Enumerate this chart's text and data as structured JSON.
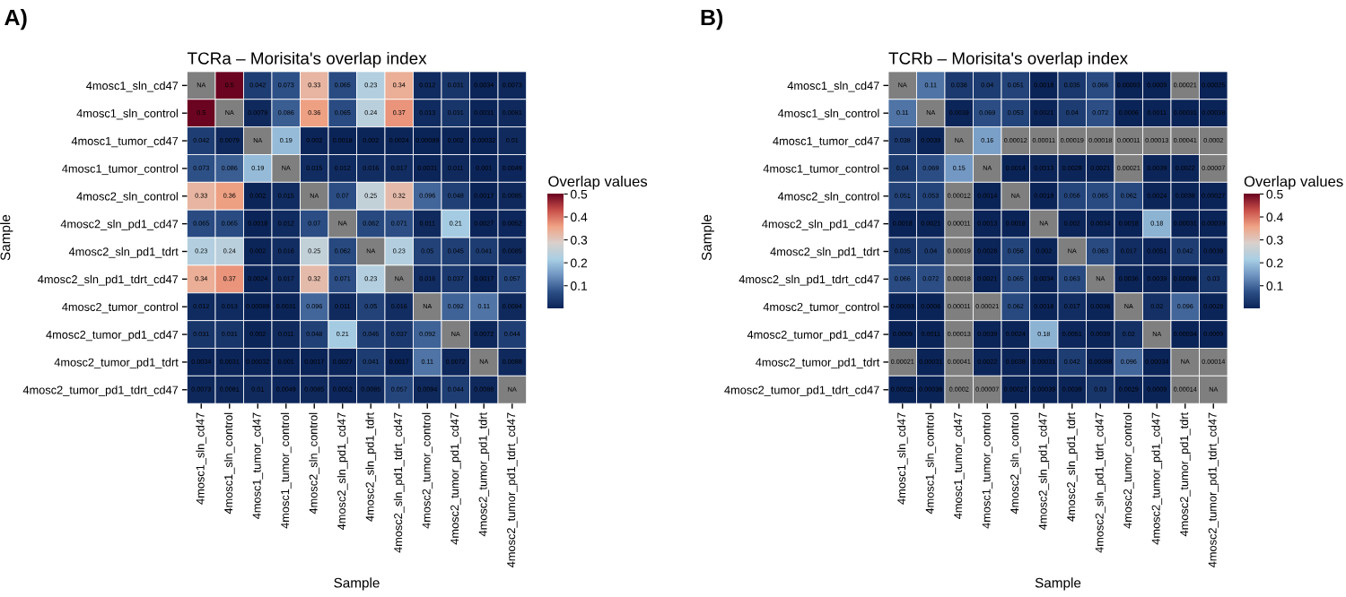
{
  "chart_data": [
    {
      "type": "heatmap",
      "title": "TCRa – Morisita's overlap index",
      "xlabel": "Sample",
      "ylabel": "Sample",
      "clabel": "Overlap values",
      "annotations": [
        "A)"
      ],
      "categories": [
        "4mosc1_sln_cd47",
        "4mosc1_sln_control",
        "4mosc1_tumor_cd47",
        "4mosc1_tumor_control",
        "4mosc2_sln_control",
        "4mosc2_sln_pd1_cd47",
        "4mosc2_sln_pd1_tdrt",
        "4mosc2_sln_pd1_tdrt_cd47",
        "4mosc2_tumor_control",
        "4mosc2_tumor_pd1_cd47",
        "4mosc2_tumor_pd1_tdrt",
        "4mosc2_tumor_pd1_tdrt_cd47"
      ],
      "y_categories": [
        "4mosc1_sln_cd47",
        "4mosc1_sln_control",
        "4mosc1_tumor_cd47",
        "4mosc1_tumor_control",
        "4mosc2_sln_control",
        "4mosc2_sln_pd1_cd47",
        "4mosc2_sln_pd1_tdrt",
        "4mosc2_sln_pd1_tdrt_cd47",
        "4mosc2_tumor_control",
        "4mosc2_tumor_pd1_cd47",
        "4mosc2_tumor_pd1_tdrt",
        "4mosc2_tumor_pd1_tdrt_cd47"
      ],
      "cells": [
        [
          null,
          0.5,
          0.042,
          0.073,
          0.33,
          0.065,
          0.23,
          0.34,
          0.012,
          0.031,
          0.0034,
          0.0073
        ],
        [
          0.5,
          null,
          0.0079,
          0.086,
          0.36,
          0.065,
          0.24,
          0.37,
          0.013,
          0.031,
          0.0031,
          0.0081
        ],
        [
          0.042,
          0.0079,
          null,
          0.19,
          0.002,
          0.0018,
          0.002,
          0.0024,
          0.00089,
          0.002,
          0.00032,
          0.01
        ],
        [
          0.073,
          0.086,
          0.19,
          null,
          0.015,
          0.012,
          0.016,
          0.017,
          0.0031,
          0.011,
          0.001,
          0.0049
        ],
        [
          0.33,
          0.36,
          0.002,
          0.015,
          null,
          0.07,
          0.25,
          0.32,
          0.096,
          0.048,
          0.0017,
          0.0085
        ],
        [
          0.065,
          0.065,
          0.0018,
          0.012,
          0.07,
          null,
          0.062,
          0.071,
          0.011,
          0.21,
          0.0027,
          0.0052
        ],
        [
          0.23,
          0.24,
          0.002,
          0.016,
          0.25,
          0.062,
          null,
          0.23,
          0.05,
          0.045,
          0.041,
          0.0085
        ],
        [
          0.34,
          0.37,
          0.0024,
          0.017,
          0.32,
          0.071,
          0.23,
          null,
          0.016,
          0.037,
          0.0017,
          0.057
        ],
        [
          0.012,
          0.013,
          0.00089,
          0.0031,
          0.096,
          0.011,
          0.05,
          0.016,
          null,
          0.092,
          0.11,
          0.0094
        ],
        [
          0.031,
          0.031,
          0.002,
          0.011,
          0.048,
          0.21,
          0.045,
          0.037,
          0.092,
          null,
          0.0072,
          0.044
        ],
        [
          0.0034,
          0.0031,
          0.00032,
          0.001,
          0.0017,
          0.0027,
          0.041,
          0.0017,
          0.11,
          0.0072,
          null,
          0.0088
        ],
        [
          0.0073,
          0.0081,
          0.01,
          0.0049,
          0.0085,
          0.0052,
          0.0085,
          0.057,
          0.0094,
          0.044,
          0.0088,
          null
        ]
      ],
      "cell_labels": [
        [
          "NA",
          "0.5",
          "0.042",
          "0.073",
          "0.33",
          "0.065",
          "0.23",
          "0.34",
          "0.012",
          "0.031",
          "0.0034",
          "0.0073"
        ],
        [
          "0.5",
          "NA",
          "0.0079",
          "0.086",
          "0.36",
          "0.065",
          "0.24",
          "0.37",
          "0.013",
          "0.031",
          "0.0031",
          "0.0081"
        ],
        [
          "0.042",
          "0.0079",
          "NA",
          "0.19",
          "0.002",
          "0.0018",
          "0.002",
          "0.0024",
          "0.00089",
          "0.002",
          "0.00032",
          "0.01"
        ],
        [
          "0.073",
          "0.086",
          "0.19",
          "NA",
          "0.015",
          "0.012",
          "0.016",
          "0.017",
          "0.0031",
          "0.011",
          "0.001",
          "0.0049"
        ],
        [
          "0.33",
          "0.36",
          "0.002",
          "0.015",
          "NA",
          "0.07",
          "0.25",
          "0.32",
          "0.096",
          "0.048",
          "0.0017",
          "0.0085"
        ],
        [
          "0.065",
          "0.065",
          "0.0018",
          "0.012",
          "0.07",
          "NA",
          "0.062",
          "0.071",
          "0.011",
          "0.21",
          "0.0027",
          "0.0052"
        ],
        [
          "0.23",
          "0.24",
          "0.002",
          "0.016",
          "0.25",
          "0.062",
          "NA",
          "0.23",
          "0.05",
          "0.045",
          "0.041",
          "0.0085"
        ],
        [
          "0.34",
          "0.37",
          "0.0024",
          "0.017",
          "0.32",
          "0.071",
          "0.23",
          "NA",
          "0.016",
          "0.037",
          "0.0017",
          "0.057"
        ],
        [
          "0.012",
          "0.013",
          "0.00089",
          "0.0031",
          "0.096",
          "0.011",
          "0.05",
          "0.016",
          "NA",
          "0.092",
          "0.11",
          "0.0094"
        ],
        [
          "0.031",
          "0.031",
          "0.002",
          "0.011",
          "0.048",
          "0.21",
          "0.045",
          "0.037",
          "0.092",
          "NA",
          "0.0072",
          "0.044"
        ],
        [
          "0.0034",
          "0.0031",
          "0.00032",
          "0.001",
          "0.0017",
          "0.0027",
          "0.041",
          "0.0017",
          "0.11",
          "0.0072",
          "NA",
          "0.0088"
        ],
        [
          "0.0073",
          "0.0081",
          "0.01",
          "0.0049",
          "0.0085",
          "0.0052",
          "0.0085",
          "0.057",
          "0.0094",
          "0.044",
          "0.0088",
          "NA"
        ]
      ],
      "clim": [
        0,
        0.5
      ],
      "cticks": [
        0.1,
        0.2,
        0.3,
        0.4,
        0.5
      ]
    },
    {
      "type": "heatmap",
      "title": "TCRb – Morisita's overlap index",
      "xlabel": "Sample",
      "ylabel": "Sample",
      "clabel": "Overlap values",
      "annotations": [
        "B)"
      ],
      "categories": [
        "4mosc1_sln_cd47",
        "4mosc1_sln_control",
        "4mosc1_tumor_cd47",
        "4mosc1_tumor_control",
        "4mosc2_sln_control",
        "4mosc2_sln_pd1_cd47",
        "4mosc2_sln_pd1_tdrt",
        "4mosc2_sln_pd1_tdrt_cd47",
        "4mosc2_tumor_control",
        "4mosc2_tumor_pd1_cd47",
        "4mosc2_tumor_pd1_tdrt",
        "4mosc2_tumor_pd1_tdrt_cd47"
      ],
      "y_categories": [
        "4mosc1_sln_cd47",
        "4mosc1_sln_control",
        "4mosc1_tumor_cd47",
        "4mosc1_tumor_control",
        "4mosc2_sln_control",
        "4mosc2_sln_pd1_cd47",
        "4mosc2_sln_pd1_tdrt",
        "4mosc2_sln_pd1_tdrt_cd47",
        "4mosc2_tumor_control",
        "4mosc2_tumor_pd1_cd47",
        "4mosc2_tumor_pd1_tdrt",
        "4mosc2_tumor_pd1_tdrt_cd47"
      ],
      "cells": [
        [
          null,
          0.11,
          0.038,
          0.04,
          0.051,
          0.0018,
          0.035,
          0.066,
          0.00093,
          0.0009,
          null,
          0.00025
        ],
        [
          0.11,
          null,
          0.0039,
          0.069,
          0.053,
          0.0021,
          0.04,
          0.072,
          0.0006,
          0.0011,
          0.00031,
          0.00038
        ],
        [
          0.038,
          0.0039,
          null,
          0.16,
          null,
          null,
          null,
          null,
          null,
          null,
          null,
          null
        ],
        [
          0.04,
          0.069,
          0.15,
          null,
          0.0014,
          0.0013,
          0.0028,
          0.0021,
          null,
          0.0039,
          0.0022,
          null
        ],
        [
          0.051,
          0.053,
          null,
          0.0014,
          null,
          0.0018,
          0.056,
          0.065,
          0.062,
          0.0024,
          0.0038,
          0.00027
        ],
        [
          0.0018,
          0.0021,
          null,
          0.0013,
          0.0018,
          null,
          0.002,
          0.0034,
          0.0018,
          0.18,
          0.00031,
          0.00039
        ],
        [
          0.035,
          0.04,
          null,
          0.0028,
          0.056,
          0.002,
          null,
          0.063,
          0.017,
          0.0051,
          0.042,
          0.0039
        ],
        [
          0.066,
          0.072,
          null,
          0.0021,
          0.065,
          0.0034,
          0.063,
          null,
          0.0036,
          0.0039,
          0.00088,
          0.03
        ],
        [
          0.00093,
          0.0006,
          null,
          null,
          0.062,
          0.0018,
          0.017,
          0.0036,
          null,
          0.02,
          0.096,
          0.0029
        ],
        [
          0.0009,
          0.0011,
          null,
          0.0039,
          0.0024,
          0.18,
          0.0051,
          0.0039,
          0.02,
          null,
          0.00034,
          0.0009
        ],
        [
          null,
          0.00031,
          null,
          0.0022,
          0.0038,
          0.00031,
          0.042,
          0.00088,
          0.096,
          0.00034,
          null,
          null
        ],
        [
          0.00025,
          0.00038,
          null,
          null,
          0.00027,
          0.00039,
          0.0039,
          0.03,
          0.0029,
          0.0009,
          null,
          null
        ]
      ],
      "cell_labels": [
        [
          "NA",
          "0.11",
          "0.038",
          "0.04",
          "0.051",
          "0.0018",
          "0.035",
          "0.066",
          "0.00093",
          "0.0009",
          "0.00021",
          "0.00025"
        ],
        [
          "0.11",
          "NA",
          "0.0039",
          "0.069",
          "0.053",
          "0.0021",
          "0.04",
          "0.072",
          "0.0006",
          "0.0011",
          "0.00031",
          "0.00038"
        ],
        [
          "0.038",
          "0.0039",
          "NA",
          "0.16",
          "0.00012",
          "0.00011",
          "0.00019",
          "0.00018",
          "0.00011",
          "0.00013",
          "0.00041",
          "0.0002"
        ],
        [
          "0.04",
          "0.069",
          "0.15",
          "NA",
          "0.0014",
          "0.0013",
          "0.0028",
          "0.0021",
          "0.00021",
          "0.0039",
          "0.0022",
          "0.00007"
        ],
        [
          "0.051",
          "0.053",
          "0.00012",
          "0.0014",
          "NA",
          "0.0018",
          "0.056",
          "0.065",
          "0.062",
          "0.0024",
          "0.0038",
          "0.00027"
        ],
        [
          "0.0018",
          "0.0021",
          "0.00011",
          "0.0013",
          "0.0018",
          "NA",
          "0.002",
          "0.0034",
          "0.0018",
          "0.18",
          "0.00031",
          "0.00039"
        ],
        [
          "0.035",
          "0.04",
          "0.00019",
          "0.0028",
          "0.056",
          "0.002",
          "NA",
          "0.063",
          "0.017",
          "0.0051",
          "0.042",
          "0.0039"
        ],
        [
          "0.066",
          "0.072",
          "0.00018",
          "0.0021",
          "0.065",
          "0.0034",
          "0.063",
          "NA",
          "0.0036",
          "0.0039",
          "0.00088",
          "0.03"
        ],
        [
          "0.00093",
          "0.0006",
          "0.00011",
          "0.00021",
          "0.062",
          "0.0018",
          "0.017",
          "0.0036",
          "NA",
          "0.02",
          "0.096",
          "0.0029"
        ],
        [
          "0.0009",
          "0.0011",
          "0.00013",
          "0.0039",
          "0.0024",
          "0.18",
          "0.0051",
          "0.0039",
          "0.02",
          "NA",
          "0.00034",
          "0.0009"
        ],
        [
          "0.00021",
          "0.00031",
          "0.00041",
          "0.0022",
          "0.0038",
          "0.00031",
          "0.042",
          "0.00088",
          "0.096",
          "0.00034",
          "NA",
          "0.00014"
        ],
        [
          "0.00025",
          "0.00038",
          "0.0002",
          "0.00007",
          "0.00027",
          "0.00039",
          "0.0039",
          "0.03",
          "0.0029",
          "0.0009",
          "0.00014",
          "NA"
        ]
      ],
      "clim": [
        0,
        0.5
      ],
      "cticks": [
        0.1,
        0.2,
        0.3,
        0.4,
        0.5
      ]
    }
  ]
}
